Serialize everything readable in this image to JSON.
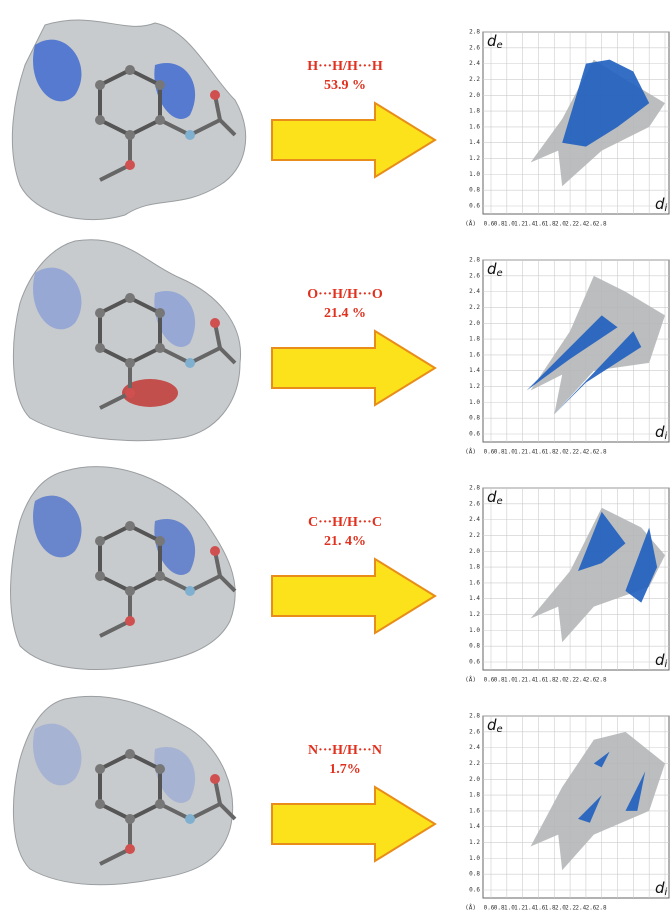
{
  "figure": {
    "panels": [
      {
        "contact": "H···H/H···H",
        "percent": "53.9 %"
      },
      {
        "contact": "O···H/H···O",
        "percent": "21.4 %"
      },
      {
        "contact": "C···H/H···C",
        "percent": "21. 4%"
      },
      {
        "contact": "N···H/H···N",
        "percent": "1.7%"
      }
    ],
    "plot": {
      "de_symbol": "d",
      "de_sub": "e",
      "di_symbol": "d",
      "di_sub": "i",
      "unit": "(Å)",
      "yticks": [
        "0.6",
        "0.8",
        "1.0",
        "1.2",
        "1.4",
        "1.6",
        "1.8",
        "2.0",
        "2.2",
        "2.4",
        "2.6",
        "2.8"
      ],
      "xticks": [
        "0.6",
        "0.8",
        "1.0",
        "1.2",
        "1.4",
        "1.6",
        "1.8",
        "2.0",
        "2.2",
        "2.4",
        "2.6",
        "2.8"
      ]
    }
  }
}
